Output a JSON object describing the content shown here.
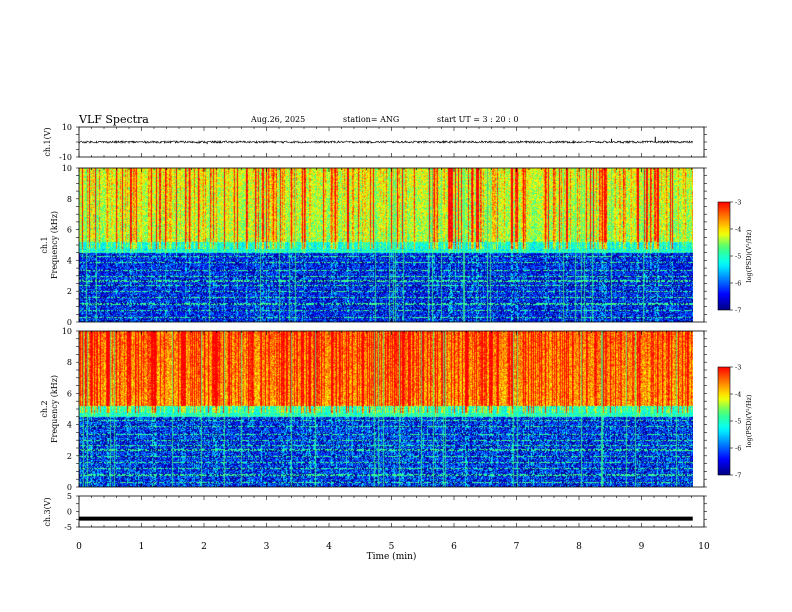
{
  "header": {
    "title": "VLF Spectra",
    "date": "Aug.26, 2025",
    "station": "station= ANG",
    "start": "start  UT =   3  : 20 : 0"
  },
  "chart_data": [
    {
      "id": "ch1-waveform",
      "type": "line",
      "ylabel": "ch.1(V)",
      "ylim": [
        -10,
        10
      ],
      "y_ticks": [
        "10",
        "-10"
      ],
      "baseline": 0,
      "noise_amplitude": 0.7,
      "spikes": [
        {
          "x": 9.22,
          "y": 3.5
        },
        {
          "x": 8.52,
          "y": 2.2
        },
        {
          "x": 2.05,
          "y": -1.4
        },
        {
          "x": 6.1,
          "y": 1.2
        }
      ]
    },
    {
      "id": "ch1-spectrogram",
      "type": "heatmap",
      "ylabel": "ch.1\nFrequency (kHz)",
      "ylabel_line1": "ch.1",
      "ylabel_line2": "Frequency (kHz)",
      "ylim": [
        0,
        10
      ],
      "y_ticks": [
        "0",
        "2",
        "4",
        "6",
        "8",
        "10"
      ],
      "z_label": "log(PSD)(V²/Hz)",
      "z_range": [
        -7,
        -3
      ],
      "z_ticks": [
        "-3",
        "-4",
        "-5",
        "-6",
        "-7"
      ],
      "background_level": -5.6,
      "upper_band_level": -4.4
    },
    {
      "id": "ch2-spectrogram",
      "type": "heatmap",
      "ylabel": "ch.2\nFrequency (kHz)",
      "ylabel_line1": "ch.2",
      "ylabel_line2": "Frequency (kHz)",
      "ylim": [
        0,
        10
      ],
      "y_ticks": [
        "0",
        "2",
        "4",
        "6",
        "8",
        "10"
      ],
      "z_label": "log(PSD)(V²/Hz)",
      "z_range": [
        -7,
        -3
      ],
      "z_ticks": [
        "-3",
        "-4",
        "-5",
        "-6",
        "-7"
      ],
      "background_level": -5.5,
      "upper_band_level": -3.7
    },
    {
      "id": "ch3-waveform",
      "type": "line",
      "ylabel": "ch.3(V)",
      "ylim": [
        -5,
        5
      ],
      "y_ticks": [
        "5",
        "0",
        "-5"
      ],
      "baseline": -2.3
    }
  ],
  "x_axis": {
    "label": "Time (min)",
    "range": [
      0,
      10
    ],
    "data_end": 9.82,
    "tick_labels": [
      "0",
      "1",
      "2",
      "3",
      "4",
      "5",
      "6",
      "7",
      "8",
      "9",
      "10"
    ]
  },
  "colors": {
    "colormap": [
      "#000080",
      "#0000ff",
      "#0080ff",
      "#00ffff",
      "#40ff80",
      "#ffff00",
      "#ff8000",
      "#ff0000",
      "#ffffff"
    ]
  }
}
